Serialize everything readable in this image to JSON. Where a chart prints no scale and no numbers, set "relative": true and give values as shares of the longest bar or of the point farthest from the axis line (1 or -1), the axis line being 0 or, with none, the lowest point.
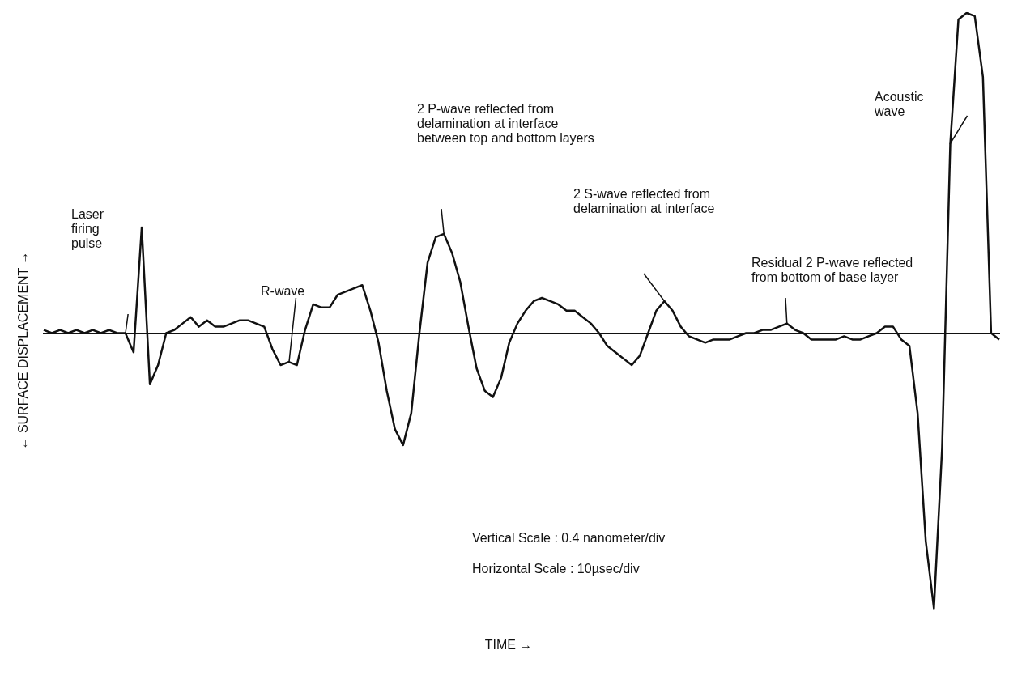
{
  "chart_data": {
    "type": "line",
    "relative": true,
    "xlabel": "TIME →",
    "ylabel": "← SURFACE DISPLACEMENT →",
    "categories": [
      null,
      null,
      null,
      null,
      null,
      null,
      null,
      null,
      null,
      null,
      null,
      null,
      null,
      null,
      null,
      null,
      null,
      null,
      null,
      null,
      null,
      null,
      null,
      null,
      null,
      null,
      null,
      null,
      null,
      null,
      null,
      null,
      null,
      null,
      null,
      null,
      null,
      null,
      null,
      null,
      null,
      null,
      null,
      null,
      null,
      null,
      null,
      null,
      null,
      null,
      null,
      null,
      null,
      null,
      null,
      null,
      null,
      null,
      null,
      null,
      null,
      null,
      null,
      null,
      null,
      null,
      null,
      null,
      null,
      null,
      null,
      null,
      null,
      null,
      null,
      null,
      null,
      null,
      null,
      null,
      null,
      null,
      null,
      null,
      null,
      null,
      null,
      null,
      null,
      null,
      null,
      null,
      null,
      null,
      null,
      null,
      null,
      null,
      null,
      null,
      null,
      null,
      null,
      null,
      null,
      null,
      null,
      null,
      null,
      null,
      null,
      null,
      null,
      null,
      null,
      null,
      null,
      null
    ],
    "series": [
      {
        "color": "#111111",
        "values": [
          0.01,
          0,
          0.01,
          0,
          0.01,
          0,
          0.01,
          0,
          0.01,
          0,
          0,
          -0.06,
          0.33,
          -0.16,
          -0.1,
          0,
          0.01,
          0.03,
          0.05,
          0.02,
          0.04,
          0.02,
          0.02,
          0.03,
          0.04,
          0.04,
          0.03,
          0.02,
          -0.05,
          -0.1,
          -0.09,
          -0.1,
          0.01,
          0.09,
          0.08,
          0.08,
          0.12,
          0.13,
          0.14,
          0.15,
          0.07,
          -0.03,
          -0.18,
          -0.3,
          -0.35,
          -0.25,
          0,
          0.22,
          0.3,
          0.31,
          0.25,
          0.16,
          0.02,
          -0.11,
          -0.18,
          -0.2,
          -0.14,
          -0.03,
          0.03,
          0.07,
          0.1,
          0.11,
          0.1,
          0.09,
          0.07,
          0.07,
          0.05,
          0.03,
          0,
          -0.04,
          -0.06,
          -0.08,
          -0.1,
          -0.07,
          0,
          0.07,
          0.1,
          0.07,
          0.02,
          -0.01,
          -0.02,
          -0.03,
          -0.02,
          -0.02,
          -0.02,
          -0.01,
          0,
          0,
          0.01,
          0.01,
          0.02,
          0.03,
          0.01,
          0,
          -0.02,
          -0.02,
          -0.02,
          -0.02,
          -0.01,
          -0.02,
          -0.02,
          -0.01,
          0,
          0.02,
          0.02,
          -0.02,
          -0.04,
          -0.25,
          -0.65,
          -0.86,
          -0.36,
          0.59,
          0.98,
          1,
          0.99,
          0.8,
          0,
          -0.02
        ]
      }
    ],
    "marker": "none",
    "line_style": "solid",
    "grid": false,
    "legend": false,
    "annotations": [
      "Laser firing pulse",
      "R-wave",
      "2 P-wave reflected from delamination at interface between top and bottom layers",
      "2 S-wave reflected from delamination at interface",
      "Residual 2 P-wave reflected from bottom of base layer",
      "Acoustic wave",
      "Vertical Scale : 0.4 nanometer/div",
      "Horizontal Scale : 10µsec/div"
    ]
  }
}
